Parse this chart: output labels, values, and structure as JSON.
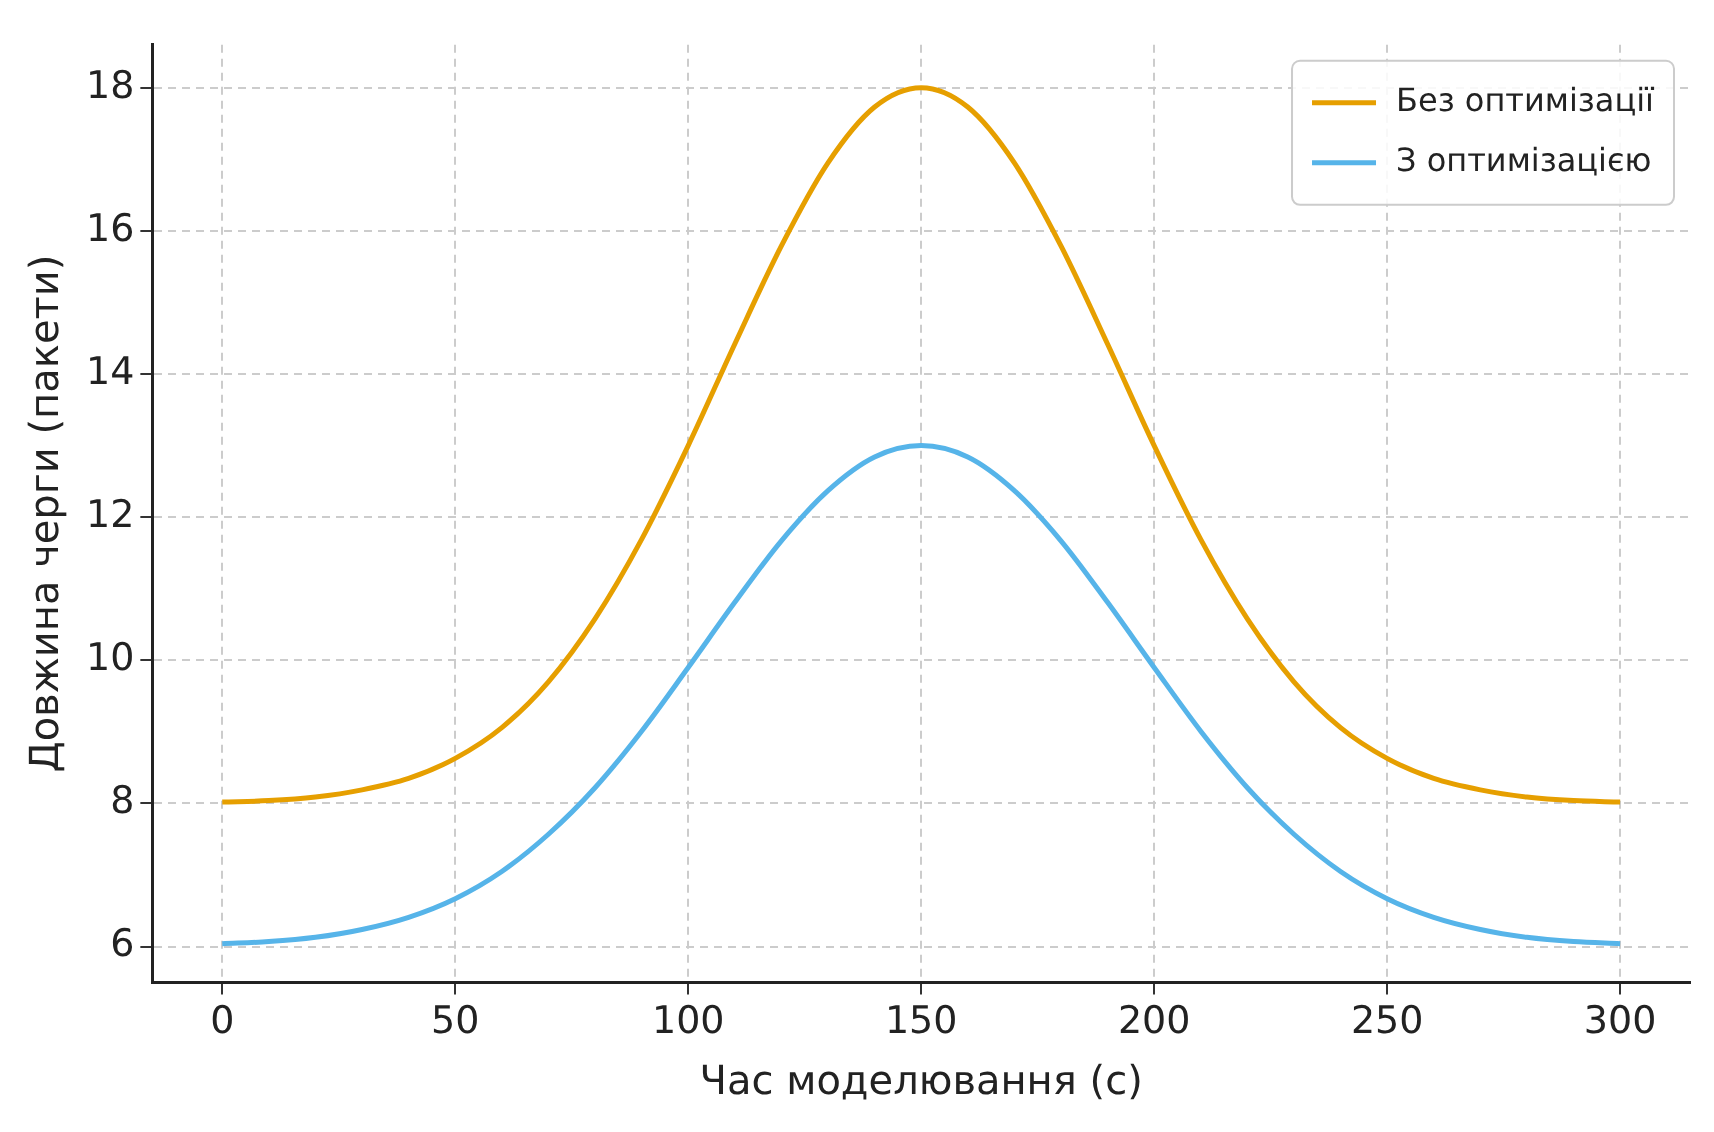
{
  "chart_data": {
    "type": "line",
    "xlabel": "Час моделювання (с)",
    "ylabel": "Довжина черги (пакети)",
    "x": [
      0,
      10,
      20,
      30,
      40,
      50,
      60,
      70,
      80,
      90,
      100,
      110,
      120,
      130,
      140,
      150,
      160,
      170,
      180,
      190,
      200,
      210,
      220,
      230,
      240,
      250,
      260,
      270,
      280,
      290,
      300
    ],
    "series": [
      {
        "name": "Без оптимізації",
        "color": "#e69f00",
        "values": [
          8.02,
          8.04,
          8.09,
          8.19,
          8.35,
          8.63,
          9.06,
          9.7,
          10.58,
          11.69,
          13.0,
          14.42,
          15.79,
          16.95,
          17.73,
          18,
          17.73,
          16.95,
          15.79,
          14.42,
          13.0,
          11.69,
          10.58,
          9.7,
          9.06,
          8.63,
          8.35,
          8.19,
          8.09,
          8.04,
          8.02
        ]
      },
      {
        "name": "З оптимізацією",
        "color": "#56b4e9",
        "values": [
          6.04,
          6.07,
          6.13,
          6.24,
          6.41,
          6.67,
          7.05,
          7.57,
          8.22,
          9.01,
          9.9,
          10.81,
          11.67,
          12.37,
          12.84,
          13,
          12.84,
          12.37,
          11.67,
          10.81,
          9.9,
          9.01,
          8.22,
          7.57,
          7.05,
          6.67,
          6.41,
          6.24,
          6.13,
          6.07,
          6.04
        ]
      }
    ],
    "xlim": [
      -15,
      315
    ],
    "xticks": [
      0,
      50,
      100,
      150,
      200,
      250,
      300
    ],
    "ylim": [
      5.5,
      18.6
    ],
    "yticks": [
      6,
      8,
      10,
      12,
      14,
      16,
      18
    ],
    "grid": true,
    "line_style": "solid",
    "marker": "none",
    "legend": "top right"
  }
}
